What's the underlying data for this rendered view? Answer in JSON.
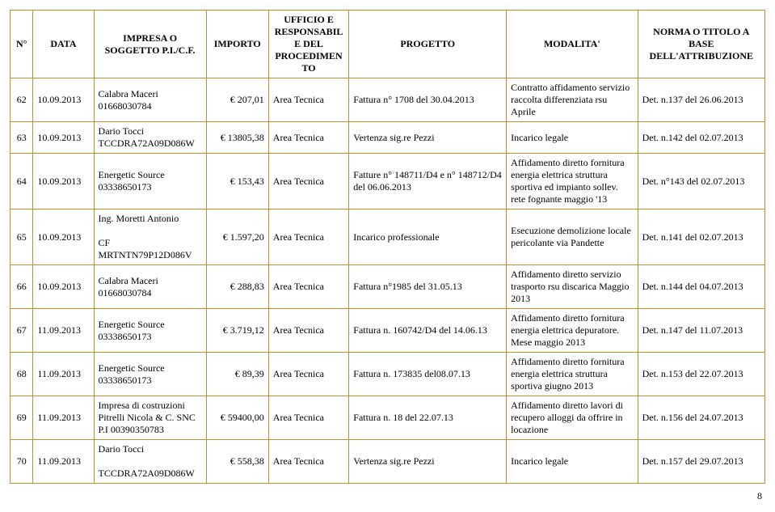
{
  "table": {
    "columns": [
      "N°",
      "DATA",
      "IMPRESA O SOGGETTO\nP.I./C.F.",
      "IMPORTO",
      "UFFICIO E RESPONSABILE\nDEL PROCEDIMENTO",
      "PROGETTO",
      "MODALITA'",
      "NORMA O TITOLO A BASE DELL'ATTRIBUZIONE"
    ],
    "column_align": [
      "center",
      "left",
      "left",
      "right",
      "left",
      "left",
      "left",
      "left"
    ],
    "border_color": "#c08d2f",
    "background_color": "#ffffff",
    "font_family": "Times New Roman",
    "font_size": 12,
    "rows": [
      [
        "62",
        "10.09.2013",
        "Calabra Maceri 01668030784",
        "€    207,01",
        "Area Tecnica",
        "Fattura n° 1708 del 30.04.2013",
        "Contratto affidamento servizio raccolta differenziata rsu Aprile",
        "Det. n.137 del 26.06.2013"
      ],
      [
        "63",
        "10.09.2013",
        "Dario Tocci TCCDRA72A09D086W",
        "€ 13805,38",
        "Area Tecnica",
        "Vertenza sig.re Pezzi",
        "Incarico legale",
        "Det. n.142 del 02.07.2013"
      ],
      [
        "64",
        "10.09.2013",
        "Energetic Source 03338650173",
        "€    153,43",
        "Area Tecnica",
        "Fatture n° 148711/D4 e n° 148712/D4 del 06.06.2013",
        "Affidamento diretto fornitura energia elettrica struttura sportiva ed impianto sollev. rete fognante maggio '13",
        "Det. n°143 del 02.07.2013"
      ],
      [
        "65",
        "10.09.2013",
        "Ing. Moretti  Antonio\n\nCF MRTNTN79P12D086V",
        "€    1.597,20",
        "Area Tecnica",
        "Incarico professionale",
        "Esecuzione demolizione locale pericolante via Pandette",
        "Det. n.141 del 02.07.2013"
      ],
      [
        "66",
        "10.09.2013",
        "Calabra Maceri 01668030784",
        "€    288,83",
        "Area Tecnica",
        "Fattura n°1985  del 31.05.13",
        "Affidamento diretto servizio trasporto rsu discarica Maggio 2013",
        "Det. n.144 del 04.07.2013"
      ],
      [
        "67",
        "11.09.2013",
        "Energetic Source 03338650173",
        "€    3.719,12",
        "Area Tecnica",
        "Fattura n. 160742/D4 del 14.06.13",
        "Affidamento diretto fornitura energia elettrica depuratore. Mese maggio 2013",
        "Det. n.147 del 11.07.2013"
      ],
      [
        "68",
        "11.09.2013",
        "Energetic Source 03338650173",
        "€      89,39",
        "Area Tecnica",
        "Fattura n. 173835 del08.07.13",
        "Affidamento diretto fornitura energia elettrica struttura sportiva giugno 2013",
        "Det. n.153 del 22.07.2013"
      ],
      [
        "69",
        "11.09.2013",
        "Impresa di costruzioni Pitrelli Nicola & C. SNC P.I 00390350783",
        "€ 59400,00",
        "Area Tecnica",
        "Fattura n. 18 del 22.07.13",
        "Affidamento diretto lavori di recupero alloggi da offrire in locazione",
        "Det. n.156 del 24.07.2013"
      ],
      [
        "70",
        "11.09.2013",
        "Dario Tocci\n\nTCCDRA72A09D086W",
        "€    558,38",
        "Area Tecnica",
        "Vertenza sig.re Pezzi",
        "Incarico legale",
        "Det. n.157 del 29.07.2013"
      ]
    ]
  },
  "page_number": "8"
}
